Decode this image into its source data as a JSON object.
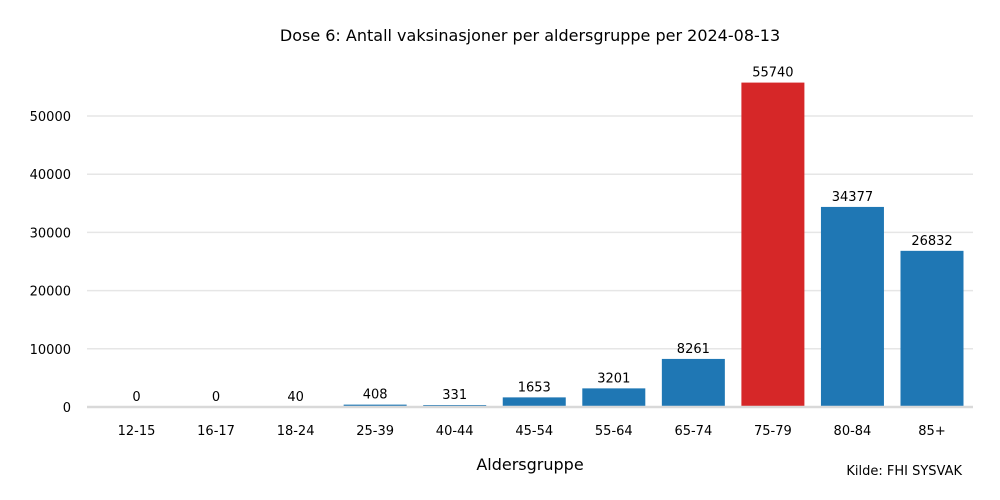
{
  "chart_data": {
    "type": "bar",
    "title": "Dose 6: Antall vaksinasjoner per aldersgruppe per 2024-08-13",
    "xlabel": "Aldersgruppe",
    "ylabel": "",
    "source": "Kilde: FHI SYSVAK",
    "categories": [
      "12-15",
      "16-17",
      "18-24",
      "25-39",
      "40-44",
      "45-54",
      "55-64",
      "65-74",
      "75-79",
      "80-84",
      "85+"
    ],
    "values": [
      0,
      0,
      40,
      408,
      331,
      1653,
      3201,
      8261,
      55740,
      34377,
      26832
    ],
    "ylim": [
      0,
      60000
    ],
    "yticks": [
      0,
      10000,
      20000,
      30000,
      40000,
      50000
    ],
    "grid": true,
    "colors": {
      "default": "#1f77b4",
      "highlight": "#d62728"
    },
    "highlight_category": "75-79"
  }
}
